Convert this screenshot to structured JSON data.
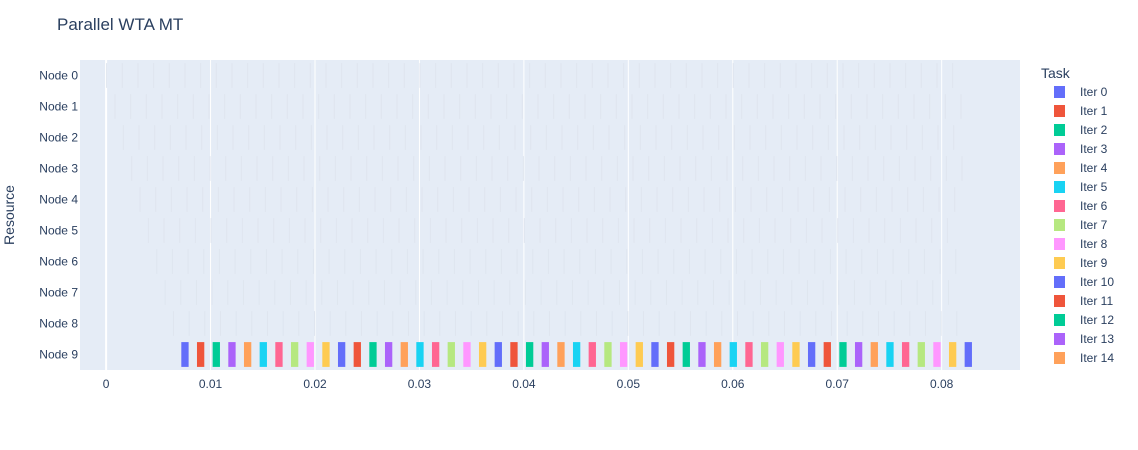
{
  "chart_data": {
    "type": "gantt",
    "title": "Parallel WTA MT",
    "xlabel": "",
    "ylabel": "Resource",
    "xlim": [
      -0.0025,
      0.0875
    ],
    "x_ticks": [
      "0",
      "0.01",
      "0.02",
      "0.03",
      "0.04",
      "0.05",
      "0.06",
      "0.07",
      "0.08"
    ],
    "x_tick_values": [
      0,
      0.01,
      0.02,
      0.03,
      0.04,
      0.05,
      0.06,
      0.07,
      0.08
    ],
    "categories": [
      "Node 0",
      "Node 1",
      "Node 2",
      "Node 3",
      "Node 4",
      "Node 5",
      "Node 6",
      "Node 7",
      "Node 8",
      "Node 9"
    ],
    "grid": true,
    "legend_title": "Task",
    "legend_position": "right",
    "series": [
      {
        "name": "Iter 0",
        "color": "#636efa"
      },
      {
        "name": "Iter 1",
        "color": "#EF553B"
      },
      {
        "name": "Iter 2",
        "color": "#00cc96"
      },
      {
        "name": "Iter 3",
        "color": "#ab63fa"
      },
      {
        "name": "Iter 4",
        "color": "#FFA15A"
      },
      {
        "name": "Iter 5",
        "color": "#19d3f3"
      },
      {
        "name": "Iter 6",
        "color": "#FF6692"
      },
      {
        "name": "Iter 7",
        "color": "#B6E880"
      },
      {
        "name": "Iter 8",
        "color": "#FF97FF"
      },
      {
        "name": "Iter 9",
        "color": "#FECB52"
      },
      {
        "name": "Iter 10",
        "color": "#636efa"
      },
      {
        "name": "Iter 11",
        "color": "#EF553B"
      },
      {
        "name": "Iter 12",
        "color": "#00cc96"
      },
      {
        "name": "Iter 13",
        "color": "#ab63fa"
      },
      {
        "name": "Iter 14",
        "color": "#FFA15A"
      }
    ],
    "node9_task_starts": [
      0.0072,
      0.0087,
      0.0102,
      0.0117,
      0.0132,
      0.0147,
      0.0162,
      0.0177,
      0.0192,
      0.0207,
      0.0222,
      0.0237,
      0.0252,
      0.0267,
      0.0282,
      0.0297,
      0.0312,
      0.0327,
      0.0342,
      0.0357,
      0.0372,
      0.0387,
      0.0402,
      0.0417,
      0.0432,
      0.0447,
      0.0462,
      0.0477,
      0.0492,
      0.0507,
      0.0522,
      0.0537,
      0.0552,
      0.0567,
      0.0582,
      0.0597,
      0.0612,
      0.0627,
      0.0642,
      0.0657,
      0.0672,
      0.0687,
      0.0702,
      0.0717,
      0.0732,
      0.0747,
      0.0762,
      0.0777,
      0.0792,
      0.0807,
      0.0822
    ],
    "node9_task_duration": 0.0007,
    "node9_task_iters": [
      0,
      1,
      2,
      3,
      4,
      5,
      6,
      7,
      8,
      9,
      0,
      1,
      2,
      3,
      4,
      5,
      6,
      7,
      8,
      9,
      0,
      1,
      2,
      3,
      4,
      5,
      6,
      7,
      8,
      9,
      0,
      1,
      2,
      3,
      4,
      5,
      6,
      7,
      8,
      9,
      0,
      1,
      2,
      3,
      4,
      5,
      6,
      7,
      8,
      9,
      0
    ],
    "other_nodes_task_color": "#dfe5ef",
    "other_nodes_task_period": 0.0015,
    "other_nodes_task_duration": 0.0001
  }
}
